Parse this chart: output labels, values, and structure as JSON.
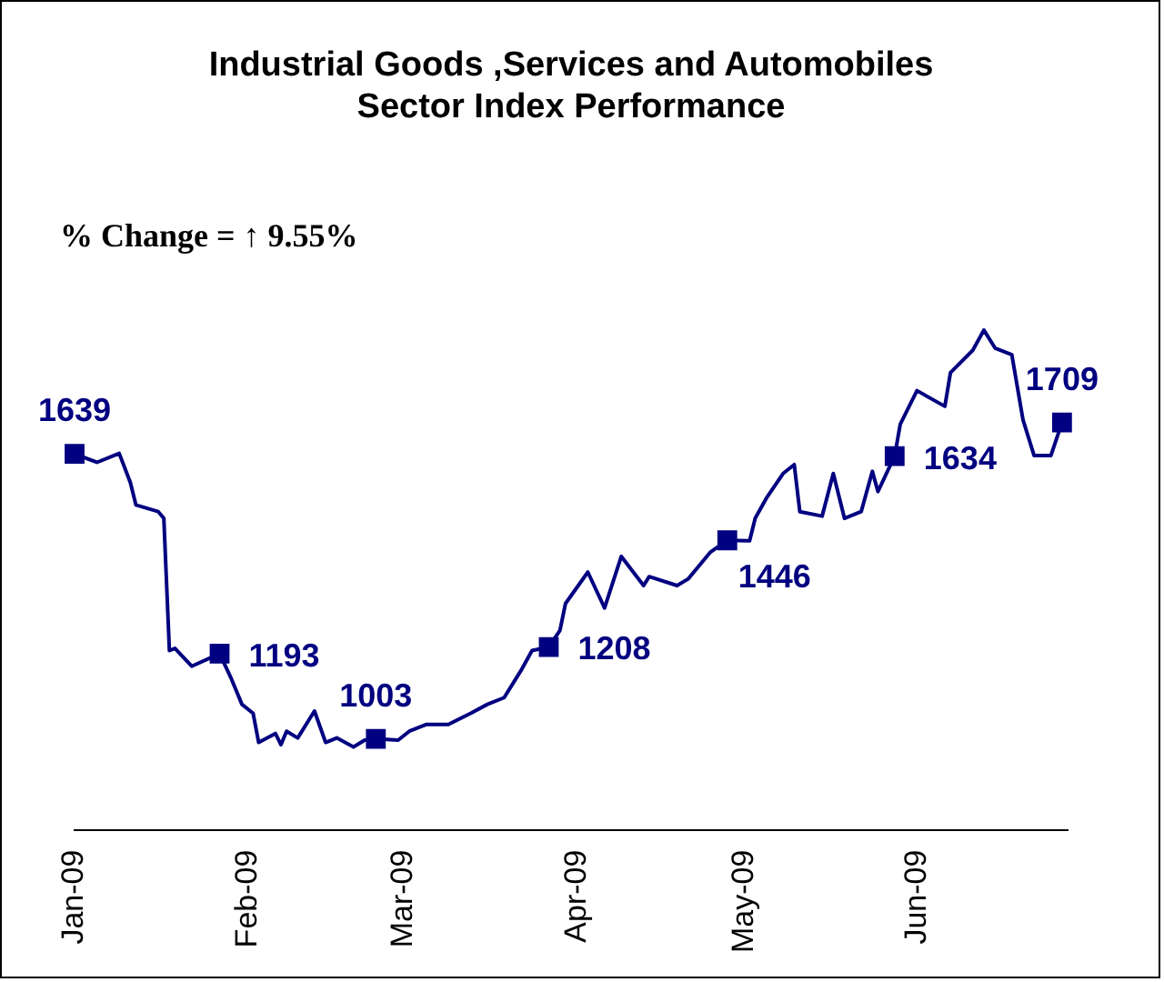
{
  "chart_data": {
    "type": "line",
    "title": "Industrial Goods ,Services and Automobiles\nSector Index Performance",
    "annotations": [
      "% Change = ↑ 9.55%"
    ],
    "xlim": [
      "2009-01-01",
      "2009-06-28"
    ],
    "xticks": [
      {
        "value": "2009-01-01",
        "label": "Jan-09"
      },
      {
        "value": "2009-02-01",
        "label": "Feb-09"
      },
      {
        "value": "2009-03-01",
        "label": "Mar-09"
      },
      {
        "value": "2009-04-01",
        "label": "Apr-09"
      },
      {
        "value": "2009-05-01",
        "label": "May-09"
      },
      {
        "value": "2009-06-01",
        "label": "Jun-09"
      }
    ],
    "tick_labels": "x",
    "grid": false,
    "legend": false,
    "series": [
      {
        "color": "#000080",
        "marker": "none",
        "line_style": "solid",
        "x": [
          "2009-01-01",
          "2009-01-05",
          "2009-01-09",
          "2009-01-11",
          "2009-01-12",
          "2009-01-16",
          "2009-01-17",
          "2009-01-18",
          "2009-01-19",
          "2009-01-22",
          "2009-01-27",
          "2009-01-29",
          "2009-01-31",
          "2009-02-02",
          "2009-02-03",
          "2009-02-06",
          "2009-02-07",
          "2009-02-08",
          "2009-02-10",
          "2009-02-13",
          "2009-02-15",
          "2009-02-17",
          "2009-02-20",
          "2009-02-22",
          "2009-02-24",
          "2009-02-28",
          "2009-03-02",
          "2009-03-05",
          "2009-03-09",
          "2009-03-13",
          "2009-03-16",
          "2009-03-19",
          "2009-03-22",
          "2009-03-24",
          "2009-03-27",
          "2009-03-29",
          "2009-03-30",
          "2009-04-03",
          "2009-04-06",
          "2009-04-09",
          "2009-04-13",
          "2009-04-14",
          "2009-04-19",
          "2009-04-21",
          "2009-04-25",
          "2009-04-28",
          "2009-05-02",
          "2009-05-03",
          "2009-05-05",
          "2009-05-08",
          "2009-05-10",
          "2009-05-11",
          "2009-05-15",
          "2009-05-17",
          "2009-05-19",
          "2009-05-22",
          "2009-05-24",
          "2009-05-25",
          "2009-05-28",
          "2009-05-29",
          "2009-06-01",
          "2009-06-06",
          "2009-06-07",
          "2009-06-11",
          "2009-06-13",
          "2009-06-15",
          "2009-06-18",
          "2009-06-20",
          "2009-06-22",
          "2009-06-25",
          "2009-06-27"
        ],
        "values": [
          1639,
          1620,
          1640,
          1575,
          1525,
          1510,
          1495,
          1200,
          1205,
          1165,
          1193,
          1140,
          1080,
          1060,
          995,
          1015,
          990,
          1020,
          1005,
          1065,
          995,
          1005,
          985,
          1000,
          1003,
          1000,
          1020,
          1035,
          1035,
          1060,
          1080,
          1095,
          1155,
          1200,
          1208,
          1245,
          1305,
          1375,
          1295,
          1410,
          1345,
          1365,
          1345,
          1360,
          1420,
          1446,
          1445,
          1495,
          1540,
          1595,
          1615,
          1510,
          1500,
          1595,
          1495,
          1510,
          1600,
          1555,
          1634,
          1705,
          1780,
          1745,
          1820,
          1870,
          1915,
          1875,
          1860,
          1715,
          1635,
          1635,
          1709
        ]
      },
      {
        "type": "scatter",
        "color": "#000080",
        "marker": "square",
        "x": [
          "2009-01-01",
          "2009-01-27",
          "2009-02-24",
          "2009-03-27",
          "2009-04-28",
          "2009-05-28",
          "2009-06-27"
        ],
        "values": [
          1639,
          1193,
          1003,
          1208,
          1446,
          1634,
          1709
        ],
        "value_labels": [
          "1639",
          "1193",
          "1003",
          "1208",
          "1446",
          "1634",
          "1709"
        ]
      }
    ]
  }
}
